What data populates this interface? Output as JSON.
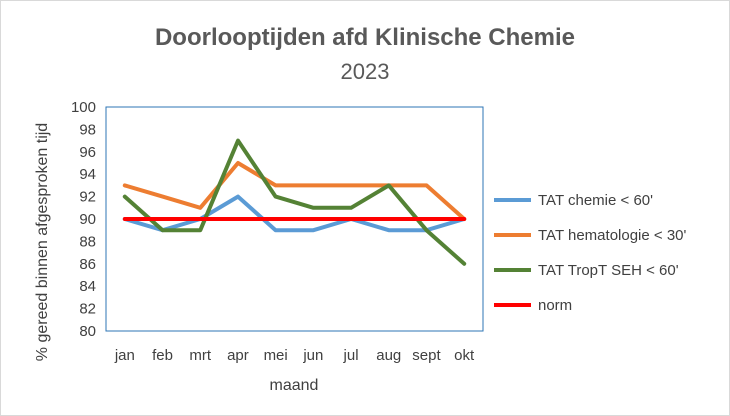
{
  "chart_data": {
    "type": "line",
    "title": "Doorlooptijden afd Klinische Chemie",
    "subtitle": "2023",
    "xlabel": "maand",
    "ylabel": "% gereed binnen afgesproken tijd",
    "categories": [
      "jan",
      "feb",
      "mrt",
      "apr",
      "mei",
      "jun",
      "jul",
      "aug",
      "sept",
      "okt"
    ],
    "ylim": [
      80,
      100
    ],
    "yticks": [
      80,
      82,
      84,
      86,
      88,
      90,
      92,
      94,
      96,
      98,
      100
    ],
    "grid": false,
    "legend_position": "right",
    "series": [
      {
        "name": "TAT chemie < 60'",
        "color": "#5b9bd5",
        "values": [
          90,
          89,
          90,
          92,
          89,
          89,
          90,
          89,
          89,
          90
        ]
      },
      {
        "name": "TAT hematologie < 30'",
        "color": "#ed7d31",
        "values": [
          93,
          92,
          91,
          95,
          93,
          93,
          93,
          93,
          93,
          90
        ]
      },
      {
        "name": "TAT TropT SEH < 60'",
        "color": "#548235",
        "values": [
          92,
          89,
          89,
          97,
          92,
          91,
          91,
          93,
          89,
          86
        ]
      },
      {
        "name": "norm",
        "color": "#ff0000",
        "values": [
          90,
          90,
          90,
          90,
          90,
          90,
          90,
          90,
          90,
          90
        ]
      }
    ]
  }
}
